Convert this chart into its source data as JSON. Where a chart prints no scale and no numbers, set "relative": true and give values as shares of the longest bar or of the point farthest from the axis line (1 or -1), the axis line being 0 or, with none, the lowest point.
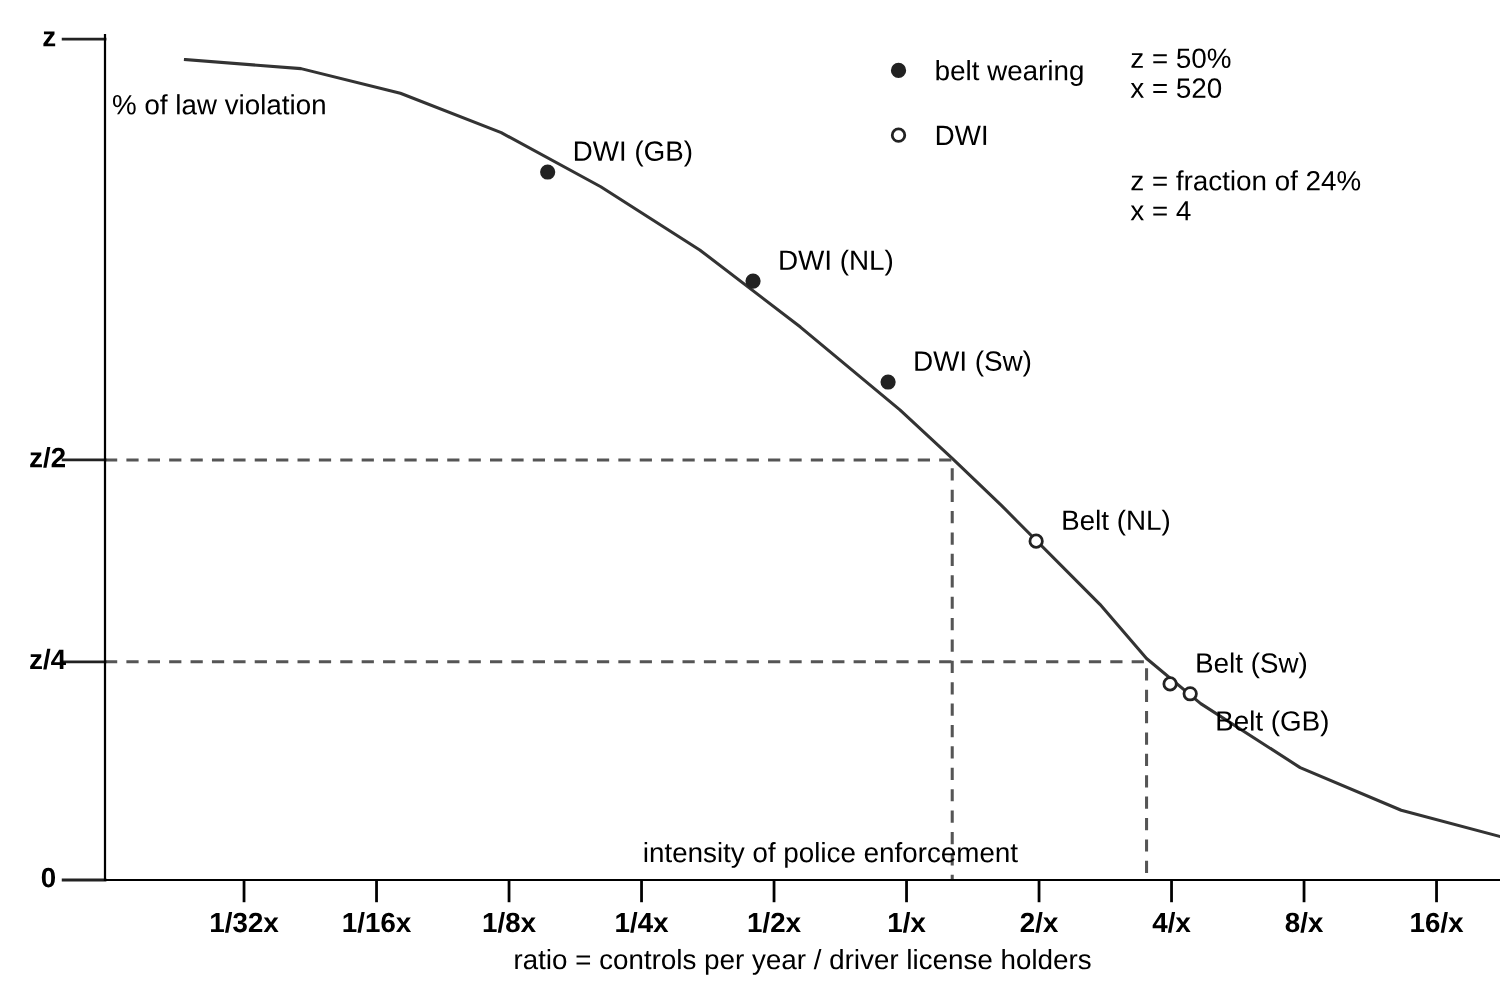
{
  "chart_data": {
    "type": "line",
    "relative": true,
    "log": "x",
    "xlabel": "ratio = controls per year / driver license holders",
    "xlim": [
      0.0151,
      22.3
    ],
    "xticks": [
      {
        "value": 0.03125,
        "label": "1/32x"
      },
      {
        "value": 0.0625,
        "label": "1/16x"
      },
      {
        "value": 0.125,
        "label": "1/8x"
      },
      {
        "value": 0.25,
        "label": "1/4x"
      },
      {
        "value": 0.5,
        "label": "1/2x"
      },
      {
        "value": 1,
        "label": "1/x"
      },
      {
        "value": 2,
        "label": "2/x"
      },
      {
        "value": 4,
        "label": "4/x"
      },
      {
        "value": 8,
        "label": "8/x"
      },
      {
        "value": 16,
        "label": "16/x"
      }
    ],
    "grid": false,
    "legend": "top right",
    "series": [
      {
        "color": "#333333",
        "marker": "none",
        "line_style": "solid",
        "x": [
          0.023,
          0.0421,
          0.0708,
          0.12,
          0.202,
          0.339,
          0.574,
          0.966,
          1.27,
          1.64,
          2.75,
          3.51,
          4.66,
          7.84,
          13.3,
          22.3
        ],
        "values": [
          1.0,
          0.989,
          0.959,
          0.911,
          0.845,
          0.768,
          0.674,
          0.573,
          0.514,
          0.457,
          0.336,
          0.27,
          0.215,
          0.137,
          0.085,
          0.053
        ]
      },
      {
        "color": "#555555",
        "marker": "none",
        "line_style": "dashed",
        "x": [
          0.0151,
          1.27,
          1.27
        ],
        "values": [
          0.512,
          0.512,
          0
        ]
      },
      {
        "color": "#555555",
        "marker": "none",
        "line_style": "dashed",
        "x": [
          0.0151,
          3.51,
          3.51
        ],
        "values": [
          0.266,
          0.266,
          0
        ]
      },
      {
        "type": "scatter",
        "name": "belt wearing",
        "color": "#222222",
        "marker": "circle",
        "x": [
          0.153,
          0.448,
          0.908
        ],
        "values": [
          0.863,
          0.73,
          0.607
        ]
      },
      {
        "type": "scatter",
        "name": "DWI",
        "color": "#ffffff",
        "marker": "circle",
        "x": [
          1.97,
          3.97,
          4.41
        ],
        "values": [
          0.413,
          0.239,
          0.227
        ]
      }
    ],
    "annotations": [
      "% of law violation",
      "intensity of police enforcement",
      "z = 50%\nx = 520",
      "z = fraction of 24%\nx = 4",
      "z",
      "0",
      {
        "text": "z/2",
        "x": 0.0151,
        "y": 0.512
      },
      {
        "text": "z/4",
        "x": 0.0151,
        "y": 0.266
      },
      {
        "text": "DWI (GB)",
        "x": 0.153,
        "y": 0.863
      },
      {
        "text": "DWI (NL)",
        "x": 0.448,
        "y": 0.73
      },
      {
        "text": "DWI (Sw)",
        "x": 0.908,
        "y": 0.607
      },
      {
        "text": "Belt (NL)",
        "x": 1.97,
        "y": 0.413
      },
      {
        "text": "Belt (Sw)",
        "x": 3.97,
        "y": 0.239
      },
      {
        "text": "Belt (GB)",
        "x": 4.41,
        "y": 0.227
      }
    ]
  }
}
